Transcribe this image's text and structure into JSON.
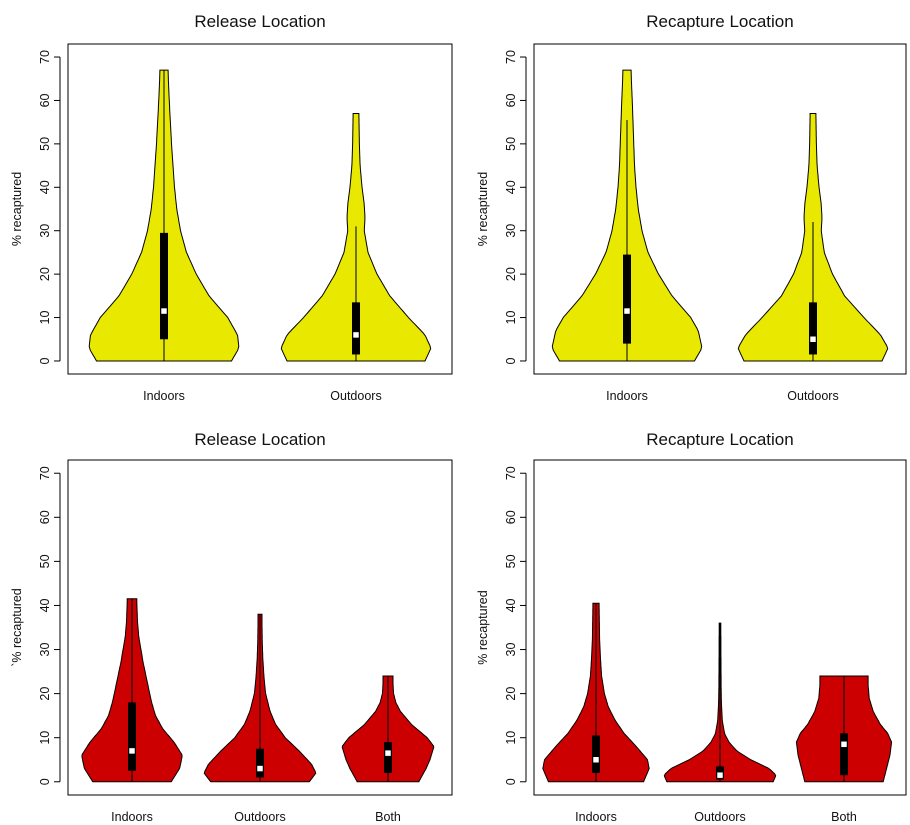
{
  "chart_data": [
    {
      "type": "violin",
      "title": "Release Location",
      "ylabel": "% recaptured",
      "ylim": [
        -3,
        73
      ],
      "yticks": [
        0,
        10,
        20,
        30,
        40,
        50,
        60,
        70
      ],
      "fill_color": "#e8e800",
      "categories": [
        "Indoors",
        "Outdoors"
      ],
      "groups": [
        {
          "name": "Indoors",
          "min": 0,
          "max": 67,
          "q1": 5,
          "median": 11.5,
          "q3": 29.5,
          "whisker_low": 0,
          "whisker_high": 67,
          "density_profile": [
            [
              0,
              0.9
            ],
            [
              3,
              1.0
            ],
            [
              6,
              0.98
            ],
            [
              10,
              0.85
            ],
            [
              15,
              0.6
            ],
            [
              20,
              0.43
            ],
            [
              25,
              0.3
            ],
            [
              30,
              0.22
            ],
            [
              35,
              0.17
            ],
            [
              40,
              0.14
            ],
            [
              45,
              0.12
            ],
            [
              50,
              0.1
            ],
            [
              55,
              0.085
            ],
            [
              60,
              0.07
            ],
            [
              64,
              0.06
            ],
            [
              67,
              0.055
            ]
          ]
        },
        {
          "name": "Outdoors",
          "min": 0,
          "max": 57,
          "q1": 1.5,
          "median": 6,
          "q3": 13.5,
          "whisker_low": 0,
          "whisker_high": 31,
          "density_profile": [
            [
              0,
              0.92
            ],
            [
              3,
              1.0
            ],
            [
              6,
              0.92
            ],
            [
              10,
              0.7
            ],
            [
              15,
              0.45
            ],
            [
              20,
              0.28
            ],
            [
              25,
              0.16
            ],
            [
              30,
              0.11
            ],
            [
              33,
              0.12
            ],
            [
              36,
              0.11
            ],
            [
              40,
              0.08
            ],
            [
              45,
              0.055
            ],
            [
              50,
              0.045
            ],
            [
              55,
              0.04
            ],
            [
              57,
              0.038
            ]
          ]
        }
      ]
    },
    {
      "type": "violin",
      "title": "Recapture Location",
      "ylabel": "% recaptured",
      "ylim": [
        -3,
        73
      ],
      "yticks": [
        0,
        10,
        20,
        30,
        40,
        50,
        60,
        70
      ],
      "fill_color": "#e8e800",
      "categories": [
        "Indoors",
        "Outdoors"
      ],
      "groups": [
        {
          "name": "Indoors",
          "min": 0,
          "max": 67,
          "q1": 4,
          "median": 11.5,
          "q3": 24.5,
          "whisker_low": 0,
          "whisker_high": 55.5,
          "density_profile": [
            [
              0,
              0.9
            ],
            [
              3,
              1.0
            ],
            [
              7,
              0.95
            ],
            [
              10,
              0.85
            ],
            [
              15,
              0.6
            ],
            [
              20,
              0.42
            ],
            [
              25,
              0.28
            ],
            [
              30,
              0.2
            ],
            [
              35,
              0.15
            ],
            [
              40,
              0.12
            ],
            [
              45,
              0.1
            ],
            [
              50,
              0.09
            ],
            [
              55,
              0.08
            ],
            [
              60,
              0.07
            ],
            [
              64,
              0.06
            ],
            [
              67,
              0.055
            ]
          ]
        },
        {
          "name": "Outdoors",
          "min": 0,
          "max": 57,
          "q1": 1.5,
          "median": 5,
          "q3": 13.5,
          "whisker_low": 0,
          "whisker_high": 32,
          "density_profile": [
            [
              0,
              0.92
            ],
            [
              3,
              1.0
            ],
            [
              6,
              0.9
            ],
            [
              10,
              0.68
            ],
            [
              15,
              0.42
            ],
            [
              20,
              0.26
            ],
            [
              25,
              0.15
            ],
            [
              30,
              0.11
            ],
            [
              33,
              0.12
            ],
            [
              36,
              0.11
            ],
            [
              40,
              0.08
            ],
            [
              45,
              0.055
            ],
            [
              50,
              0.045
            ],
            [
              55,
              0.04
            ],
            [
              57,
              0.038
            ]
          ]
        }
      ]
    },
    {
      "type": "violin",
      "title": "Release Location",
      "ylabel": "`% recaptured",
      "ylim": [
        -3,
        73
      ],
      "yticks": [
        0,
        10,
        20,
        30,
        40,
        50,
        60,
        70
      ],
      "fill_color": "#cc0000",
      "categories": [
        "Indoors",
        "Outdoors",
        "Both"
      ],
      "groups": [
        {
          "name": "Indoors",
          "min": 0,
          "max": 41.5,
          "q1": 2.5,
          "median": 7,
          "q3": 18,
          "whisker_low": 0,
          "whisker_high": 41.5,
          "density_profile": [
            [
              0,
              0.7
            ],
            [
              3,
              0.85
            ],
            [
              6,
              0.9
            ],
            [
              9,
              0.75
            ],
            [
              12,
              0.55
            ],
            [
              15,
              0.42
            ],
            [
              18,
              0.35
            ],
            [
              21,
              0.3
            ],
            [
              24,
              0.25
            ],
            [
              27,
              0.2
            ],
            [
              30,
              0.16
            ],
            [
              33,
              0.12
            ],
            [
              36,
              0.1
            ],
            [
              39,
              0.09
            ],
            [
              41.5,
              0.085
            ]
          ]
        },
        {
          "name": "Outdoors",
          "min": 0,
          "max": 38,
          "q1": 1,
          "median": 3,
          "q3": 7.5,
          "whisker_low": 0,
          "whisker_high": 38,
          "density_profile": [
            [
              0,
              0.88
            ],
            [
              2,
              1.0
            ],
            [
              4,
              0.92
            ],
            [
              7,
              0.7
            ],
            [
              10,
              0.45
            ],
            [
              13,
              0.28
            ],
            [
              16,
              0.18
            ],
            [
              20,
              0.1
            ],
            [
              24,
              0.07
            ],
            [
              28,
              0.05
            ],
            [
              32,
              0.04
            ],
            [
              36,
              0.035
            ],
            [
              38,
              0.035
            ]
          ]
        },
        {
          "name": "Both",
          "min": 0,
          "max": 24,
          "q1": 2,
          "median": 6.5,
          "q3": 9,
          "whisker_low": 0,
          "whisker_high": 24,
          "density_profile": [
            [
              0,
              0.55
            ],
            [
              3,
              0.68
            ],
            [
              5,
              0.75
            ],
            [
              8,
              0.82
            ],
            [
              10,
              0.7
            ],
            [
              13,
              0.42
            ],
            [
              16,
              0.22
            ],
            [
              18,
              0.14
            ],
            [
              20,
              0.1
            ],
            [
              22,
              0.09
            ],
            [
              24,
              0.09
            ]
          ]
        }
      ]
    },
    {
      "type": "violin",
      "title": "Recapture Location",
      "ylabel": "% recaptured",
      "ylim": [
        -3,
        73
      ],
      "yticks": [
        0,
        10,
        20,
        30,
        40,
        50,
        60,
        70
      ],
      "fill_color": "#cc0000",
      "categories": [
        "Indoors",
        "Outdoors",
        "Both"
      ],
      "groups": [
        {
          "name": "Indoors",
          "min": 0,
          "max": 40.5,
          "q1": 2,
          "median": 5,
          "q3": 10.5,
          "whisker_low": 0,
          "whisker_high": 40.5,
          "density_profile": [
            [
              0,
              0.85
            ],
            [
              3,
              0.95
            ],
            [
              5,
              0.92
            ],
            [
              8,
              0.72
            ],
            [
              11,
              0.5
            ],
            [
              14,
              0.34
            ],
            [
              17,
              0.22
            ],
            [
              20,
              0.15
            ],
            [
              24,
              0.1
            ],
            [
              28,
              0.08
            ],
            [
              32,
              0.065
            ],
            [
              36,
              0.06
            ],
            [
              40.5,
              0.055
            ]
          ]
        },
        {
          "name": "Outdoors",
          "min": 0,
          "max": 36,
          "q1": 0.5,
          "median": 1.5,
          "q3": 3.5,
          "whisker_low": 0,
          "whisker_high": 36,
          "density_profile": [
            [
              0,
              0.95
            ],
            [
              1.5,
              1.0
            ],
            [
              3,
              0.88
            ],
            [
              5,
              0.55
            ],
            [
              7,
              0.3
            ],
            [
              9,
              0.16
            ],
            [
              11,
              0.08
            ],
            [
              14,
              0.04
            ],
            [
              18,
              0.025
            ],
            [
              22,
              0.02
            ],
            [
              26,
              0.018
            ],
            [
              30,
              0.016
            ],
            [
              34,
              0.015
            ],
            [
              36,
              0.015
            ]
          ]
        },
        {
          "name": "Both",
          "min": 0,
          "max": 24,
          "q1": 1.5,
          "median": 8.5,
          "q3": 11,
          "whisker_low": 0,
          "whisker_high": 24,
          "density_profile": [
            [
              0,
              0.7
            ],
            [
              3,
              0.76
            ],
            [
              6,
              0.82
            ],
            [
              9,
              0.85
            ],
            [
              11,
              0.78
            ],
            [
              13,
              0.65
            ],
            [
              16,
              0.52
            ],
            [
              19,
              0.45
            ],
            [
              22,
              0.43
            ],
            [
              24,
              0.43
            ]
          ]
        }
      ]
    }
  ]
}
